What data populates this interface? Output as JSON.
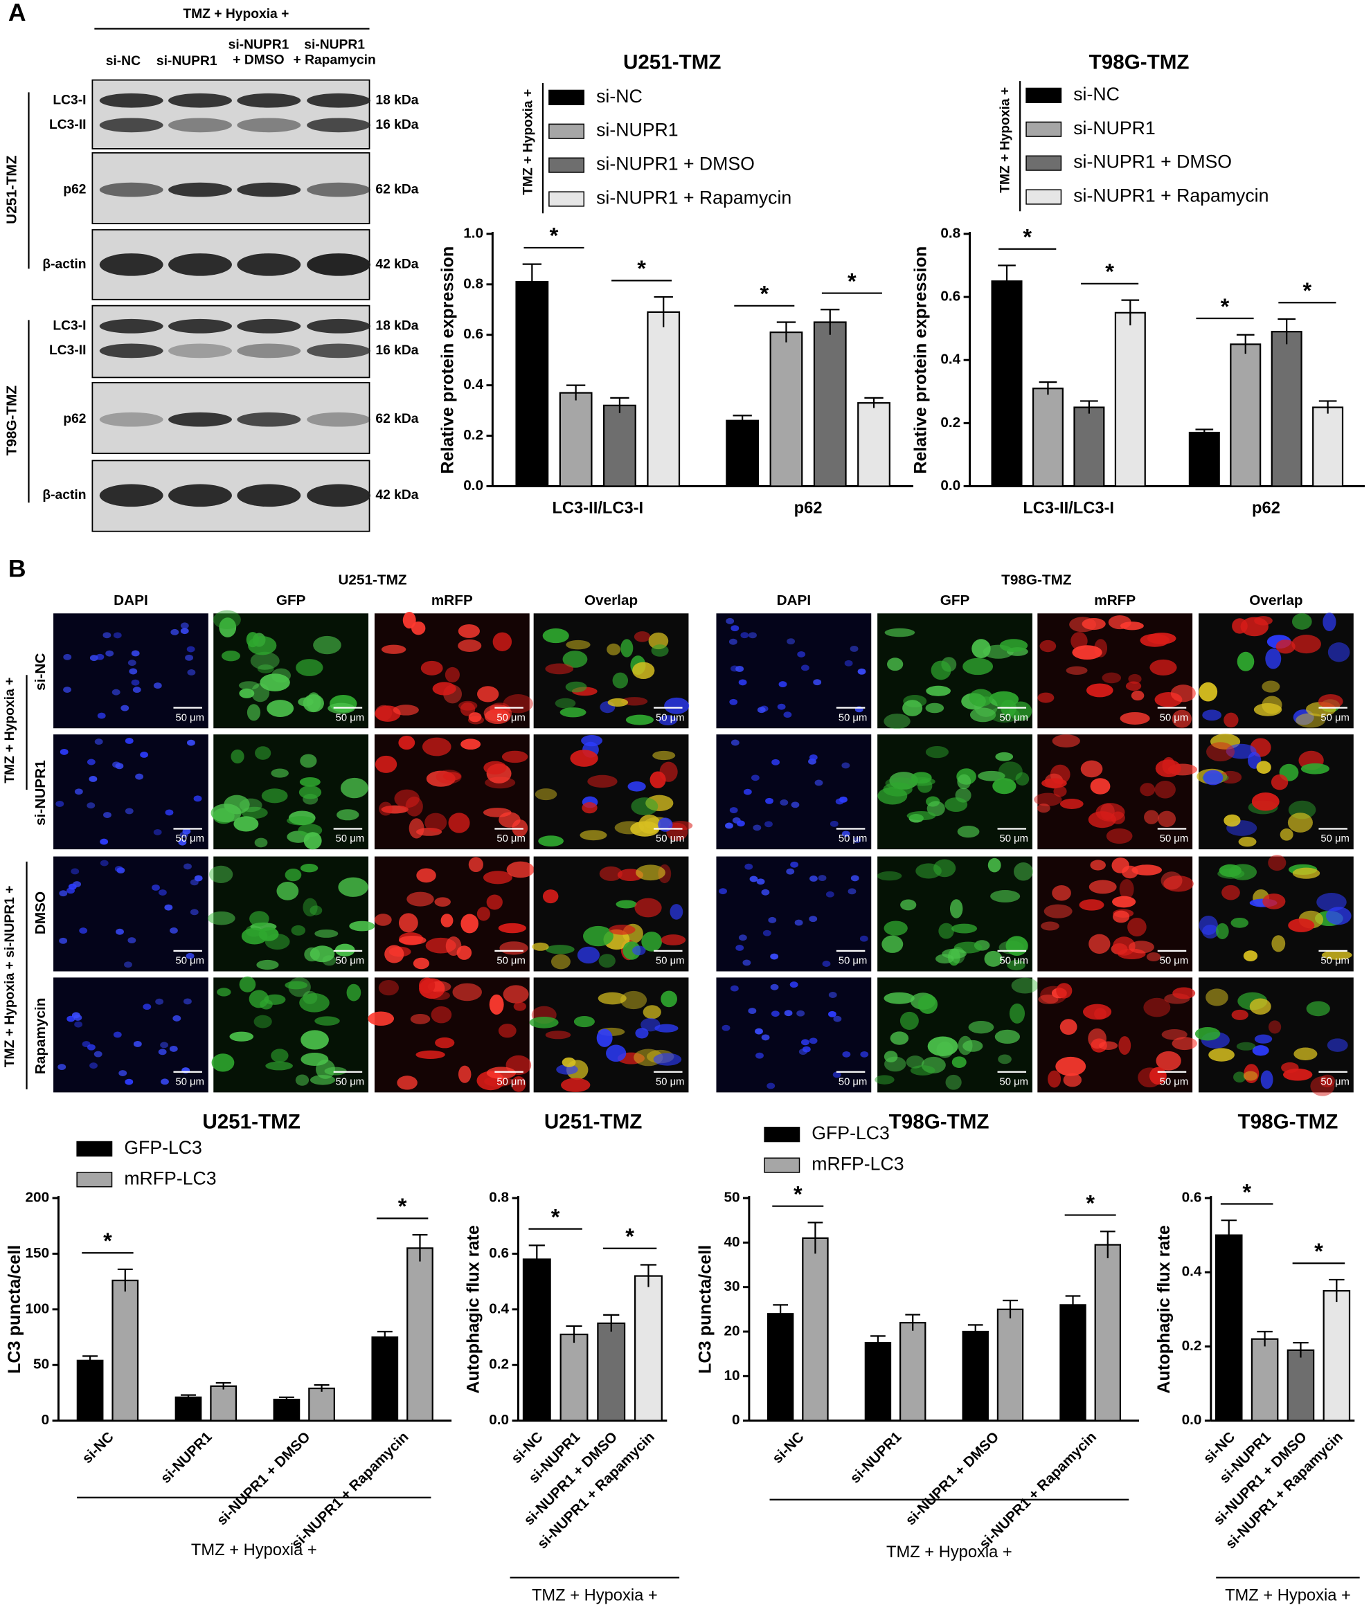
{
  "panels": [
    "A",
    "B"
  ],
  "blot": {
    "header": "TMZ + Hypoxia +",
    "lanes": [
      [
        "si-NC"
      ],
      [
        "si-NUPR1"
      ],
      [
        "si-NUPR1",
        "+ DMSO"
      ],
      [
        "si-NUPR1",
        "+ Rapamycin"
      ]
    ],
    "cell_lines": [
      "U251-TMZ",
      "T98G-TMZ"
    ],
    "rows": [
      {
        "labels": [
          "LC3-I",
          "LC3-II"
        ],
        "sizes": [
          "18 kDa",
          "16 kDa"
        ]
      },
      {
        "labels": [
          "p62"
        ],
        "sizes": [
          "62 kDa"
        ]
      },
      {
        "labels": [
          "β-actin"
        ],
        "sizes": [
          "42 kDa"
        ]
      }
    ]
  },
  "microscopy": {
    "cell_lines": [
      "U251-TMZ",
      "T98G-TMZ"
    ],
    "channels": [
      "DAPI",
      "GFP",
      "mRFP",
      "Overlap"
    ],
    "group_labels": [
      "TMZ + Hypoxia +",
      "TMZ + Hypoxia + si-NUPR1 +"
    ],
    "rows": [
      "si-NC",
      "si-NUPR1",
      "DMSO",
      "Rapamycin"
    ],
    "scale_bar": "50 μm"
  },
  "chart_data": [
    {
      "type": "bar",
      "title": "U251-TMZ",
      "ylabel": "Relative protein expression",
      "categories": [
        "LC3-II/LC3-I",
        "p62"
      ],
      "legend_title": "TMZ + Hypoxia +",
      "series": [
        {
          "name": "si-NC",
          "color": "#000000",
          "values": [
            0.81,
            0.26
          ],
          "errors": [
            0.07,
            0.02
          ]
        },
        {
          "name": "si-NUPR1",
          "color": "#a6a6a6",
          "values": [
            0.37,
            0.61
          ],
          "errors": [
            0.03,
            0.04
          ]
        },
        {
          "name": "si-NUPR1 + DMSO",
          "color": "#6e6e6e",
          "values": [
            0.32,
            0.65
          ],
          "errors": [
            0.03,
            0.05
          ]
        },
        {
          "name": "si-NUPR1 + Rapamycin",
          "color": "#e6e6e6",
          "values": [
            0.69,
            0.33
          ],
          "errors": [
            0.06,
            0.02
          ]
        }
      ],
      "ylim": [
        0,
        1
      ],
      "yticks": [
        {
          "value": 0,
          "label": "0.0"
        },
        0.2,
        0.4,
        0.6,
        0.8,
        {
          "value": 1,
          "label": "1.0"
        }
      ],
      "comparisons": [
        {
          "category": "LC3-II/LC3-I",
          "series": [
            "si-NC",
            "si-NUPR1"
          ],
          "label": "*"
        },
        {
          "category": "LC3-II/LC3-I",
          "series": [
            "si-NUPR1 + DMSO",
            "si-NUPR1 + Rapamycin"
          ],
          "label": "*"
        },
        {
          "category": "p62",
          "series": [
            "si-NC",
            "si-NUPR1"
          ],
          "label": "*"
        },
        {
          "category": "p62",
          "series": [
            "si-NUPR1 + DMSO",
            "si-NUPR1 + Rapamycin"
          ],
          "label": "*"
        }
      ]
    },
    {
      "type": "bar",
      "title": "T98G-TMZ",
      "ylabel": "Relative protein expression",
      "categories": [
        "LC3-II/LC3-I",
        "p62"
      ],
      "legend_title": "TMZ + Hypoxia +",
      "series": [
        {
          "name": "si-NC",
          "color": "#000000",
          "values": [
            0.65,
            0.17
          ],
          "errors": [
            0.05,
            0.01
          ]
        },
        {
          "name": "si-NUPR1",
          "color": "#a6a6a6",
          "values": [
            0.31,
            0.45
          ],
          "errors": [
            0.02,
            0.03
          ]
        },
        {
          "name": "si-NUPR1 + DMSO",
          "color": "#6e6e6e",
          "values": [
            0.25,
            0.49
          ],
          "errors": [
            0.02,
            0.04
          ]
        },
        {
          "name": "si-NUPR1 + Rapamycin",
          "color": "#e6e6e6",
          "values": [
            0.55,
            0.25
          ],
          "errors": [
            0.04,
            0.02
          ]
        }
      ],
      "ylim": [
        0,
        0.8
      ],
      "yticks": [
        {
          "value": 0,
          "label": "0.0"
        },
        0.2,
        0.4,
        0.6,
        0.8
      ],
      "comparisons": [
        {
          "category": "LC3-II/LC3-I",
          "series": [
            "si-NC",
            "si-NUPR1"
          ],
          "label": "*"
        },
        {
          "category": "LC3-II/LC3-I",
          "series": [
            "si-NUPR1 + DMSO",
            "si-NUPR1 + Rapamycin"
          ],
          "label": "*"
        },
        {
          "category": "p62",
          "series": [
            "si-NC",
            "si-NUPR1"
          ],
          "label": "*"
        },
        {
          "category": "p62",
          "series": [
            "si-NUPR1 + DMSO",
            "si-NUPR1 + Rapamycin"
          ],
          "label": "*"
        }
      ]
    },
    {
      "type": "bar",
      "title": "U251-TMZ",
      "ylabel": "LC3 puncta/cell",
      "xlabel": "TMZ + Hypoxia +",
      "categories": [
        "si-NC",
        "si-NUPR1",
        "si-NUPR1 + DMSO",
        "si-NUPR1 + Rapamycin"
      ],
      "series": [
        {
          "name": "GFP-LC3",
          "color": "#000000",
          "values": [
            54,
            21,
            19,
            75
          ],
          "errors": [
            4,
            2,
            2,
            5
          ]
        },
        {
          "name": "mRFP-LC3",
          "color": "#a6a6a6",
          "values": [
            126,
            31,
            29,
            155
          ],
          "errors": [
            10,
            3,
            3,
            12
          ]
        }
      ],
      "ylim": [
        0,
        200
      ],
      "yticks": [
        0,
        50,
        100,
        150,
        200
      ],
      "comparisons": [
        {
          "category": "si-NC",
          "series": [
            "GFP-LC3",
            "mRFP-LC3"
          ],
          "label": "*"
        },
        {
          "category": "si-NUPR1 + Rapamycin",
          "series": [
            "GFP-LC3",
            "mRFP-LC3"
          ],
          "label": "*"
        }
      ]
    },
    {
      "type": "bar",
      "title": "U251-TMZ",
      "ylabel": "Autophagic flux rate",
      "xlabel": "TMZ + Hypoxia +",
      "categories": [
        "si-NC",
        "si-NUPR1",
        "si-NUPR1 + DMSO",
        "si-NUPR1 + Rapamycin"
      ],
      "values": [
        0.58,
        0.31,
        0.35,
        0.52
      ],
      "errors": [
        0.05,
        0.03,
        0.03,
        0.04
      ],
      "colors": [
        "#000000",
        "#a6a6a6",
        "#6e6e6e",
        "#e6e6e6"
      ],
      "ylim": [
        0,
        0.8
      ],
      "yticks": [
        {
          "value": 0,
          "label": "0.0"
        },
        0.2,
        0.4,
        0.6,
        0.8
      ],
      "comparisons": [
        {
          "categories": [
            "si-NC",
            "si-NUPR1"
          ],
          "label": "*"
        },
        {
          "categories": [
            "si-NUPR1 + DMSO",
            "si-NUPR1 + Rapamycin"
          ],
          "label": "*"
        }
      ]
    },
    {
      "type": "bar",
      "title": "T98G-TMZ",
      "ylabel": "LC3 puncta/cell",
      "xlabel": "TMZ + Hypoxia +",
      "categories": [
        "si-NC",
        "si-NUPR1",
        "si-NUPR1 + DMSO",
        "si-NUPR1 + Rapamycin"
      ],
      "series": [
        {
          "name": "GFP-LC3",
          "color": "#000000",
          "values": [
            24,
            17.5,
            20,
            26
          ],
          "errors": [
            2,
            1.5,
            1.5,
            2
          ]
        },
        {
          "name": "mRFP-LC3",
          "color": "#a6a6a6",
          "values": [
            41,
            22,
            25,
            39.5
          ],
          "errors": [
            3.5,
            1.8,
            2,
            3
          ]
        }
      ],
      "ylim": [
        0,
        50
      ],
      "yticks": [
        0,
        10,
        20,
        30,
        40,
        50
      ],
      "comparisons": [
        {
          "category": "si-NC",
          "series": [
            "GFP-LC3",
            "mRFP-LC3"
          ],
          "label": "*"
        },
        {
          "category": "si-NUPR1 + Rapamycin",
          "series": [
            "GFP-LC3",
            "mRFP-LC3"
          ],
          "label": "*"
        }
      ]
    },
    {
      "type": "bar",
      "title": "T98G-TMZ",
      "ylabel": "Autophagic flux rate",
      "xlabel": "TMZ + Hypoxia +",
      "categories": [
        "si-NC",
        "si-NUPR1",
        "si-NUPR1 + DMSO",
        "si-NUPR1 + Rapamycin"
      ],
      "values": [
        0.5,
        0.22,
        0.19,
        0.35
      ],
      "errors": [
        0.04,
        0.02,
        0.02,
        0.03
      ],
      "colors": [
        "#000000",
        "#a6a6a6",
        "#6e6e6e",
        "#e6e6e6"
      ],
      "ylim": [
        0,
        0.6
      ],
      "yticks": [
        {
          "value": 0,
          "label": "0.0"
        },
        0.2,
        0.4,
        0.6
      ],
      "comparisons": [
        {
          "categories": [
            "si-NC",
            "si-NUPR1"
          ],
          "label": "*"
        },
        {
          "categories": [
            "si-NUPR1 + DMSO",
            "si-NUPR1 + Rapamycin"
          ],
          "label": "*"
        }
      ]
    }
  ]
}
